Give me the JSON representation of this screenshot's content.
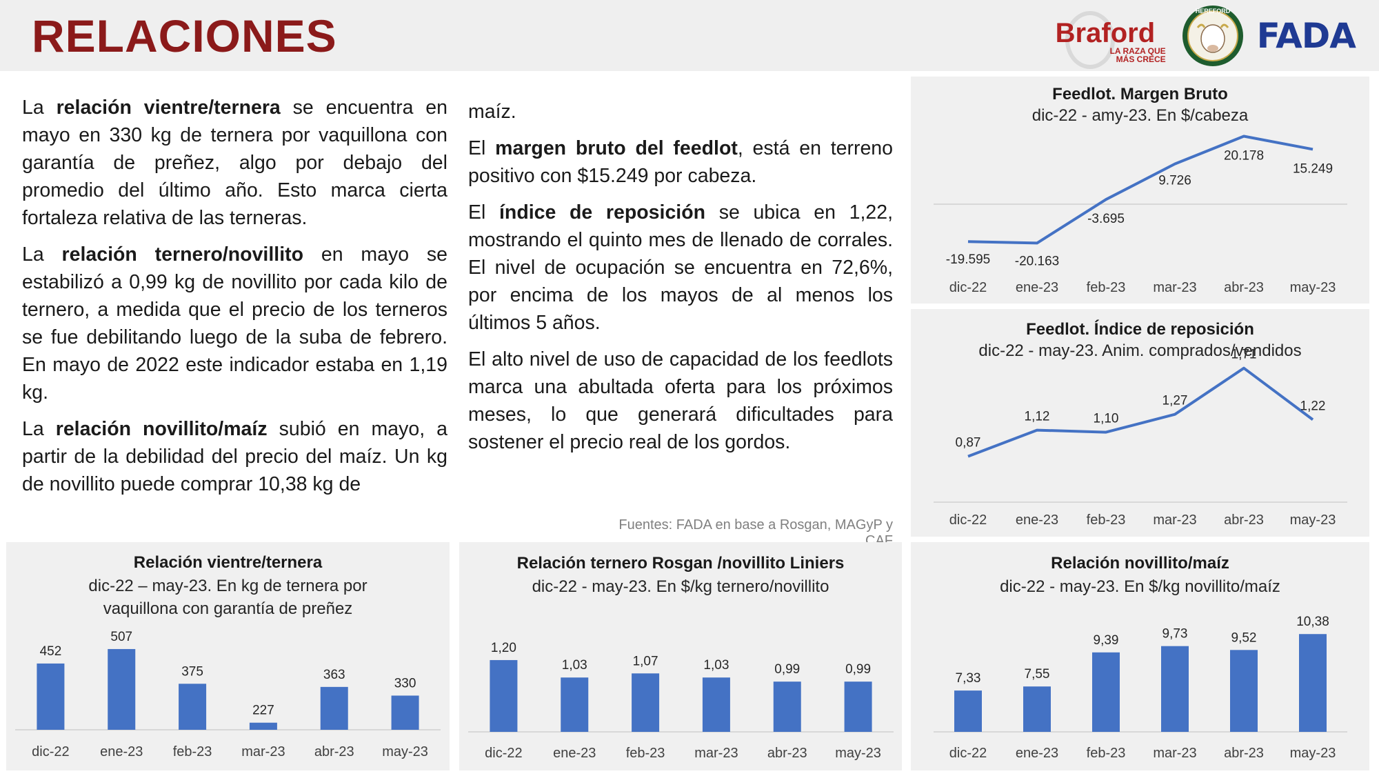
{
  "page": {
    "title": "RELACIONES"
  },
  "logos": {
    "braford_name": "Braford",
    "braford_tagline_1": "LA RAZA QUE",
    "braford_tagline_2": "MÁS CRECE",
    "hereford_ring": "HEREFORD",
    "fada": "FADA"
  },
  "text": {
    "col1": [
      [
        "La ",
        {
          "b": "relación vientre/ternera"
        },
        " se encuentra en mayo en 330 kg de ternera por vaquillona con garantía de preñez, algo por debajo del promedio del último año. Esto marca cierta fortaleza relativa de las terneras."
      ],
      [
        "La ",
        {
          "b": "relación ternero/novillito"
        },
        " en mayo se estabilizó a 0,99 kg de novillito por cada kilo de ternero, a medida que el precio de los terneros se fue debilitando luego de la suba de febrero. En mayo de 2022 este indicador estaba en 1,19 kg."
      ],
      [
        "La ",
        {
          "b": "relación novillito/maíz"
        },
        " subió en mayo, a partir de la debilidad del precio del maíz. Un kg de novillito puede comprar 10,38 kg de"
      ]
    ],
    "col2": [
      [
        "maíz."
      ],
      [
        "El ",
        {
          "b": "margen bruto del feedlot"
        },
        ", está en terreno positivo con $15.249 por cabeza."
      ],
      [
        "El ",
        {
          "b": "índice de reposición"
        },
        " se ubica en 1,22, mostrando el quinto mes de llenado de corrales. El nivel de ocupación se encuentra en 72,6%, por encima de los mayos de al menos los últimos 5 años."
      ],
      [
        "El alto nivel de uso de capacidad de los feedlots marca una abultada oferta para los próximos meses, lo que generará dificultades para sostener el precio real de los gordos."
      ]
    ],
    "source": "Fuentes: FADA en base a Rosgan, MAGyP y CAF"
  },
  "colors": {
    "title": "#8b1a1a",
    "bar": "#4472c4",
    "line": "#4472c4",
    "panel_bg": "#f0f0f0"
  },
  "chart_data": [
    {
      "id": "margen",
      "type": "line",
      "title": "Feedlot. Margen Bruto",
      "subtitle": "dic-22 - amy-23. En $/cabeza",
      "categories": [
        "dic-22",
        "ene-23",
        "feb-23",
        "mar-23",
        "abr-23",
        "may-23"
      ],
      "values": [
        -19595,
        -20163,
        -3695,
        9726,
        20178,
        15249
      ],
      "labels": [
        "-19.595",
        "-20.163",
        "-3.695",
        "9.726",
        "20.178",
        "15.249"
      ],
      "ylim": [
        -25000,
        25000
      ]
    },
    {
      "id": "indice",
      "type": "line",
      "title": "Feedlot. Índice de reposición",
      "subtitle": "dic-22 - may-23. Anim. comprados/vendidos",
      "categories": [
        "dic-22",
        "ene-23",
        "feb-23",
        "mar-23",
        "abr-23",
        "may-23"
      ],
      "values": [
        0.87,
        1.12,
        1.1,
        1.27,
        1.71,
        1.22
      ],
      "labels": [
        "0,87",
        "1,12",
        "1,10",
        "1,27",
        "1,71",
        "1,22"
      ],
      "ylim": [
        0.5,
        1.8
      ]
    },
    {
      "id": "vientre",
      "type": "bar",
      "title": "Relación vientre/ternera",
      "subtitle": "dic-22 – may-23. En kg de ternera por vaquillona con garantía de preñez",
      "categories": [
        "dic-22",
        "ene-23",
        "feb-23",
        "mar-23",
        "abr-23",
        "may-23"
      ],
      "values": [
        452,
        507,
        375,
        227,
        363,
        330
      ],
      "labels": [
        "452",
        "507",
        "375",
        "227",
        "363",
        "330"
      ],
      "ylim": [
        200,
        520
      ]
    },
    {
      "id": "ternero",
      "type": "bar",
      "title": "Relación ternero Rosgan /novillito Liniers",
      "subtitle": "dic-22 - may-23. En $/kg ternero/novillito",
      "categories": [
        "dic-22",
        "ene-23",
        "feb-23",
        "mar-23",
        "abr-23",
        "may-23"
      ],
      "values": [
        1.2,
        1.03,
        1.07,
        1.03,
        0.99,
        0.99
      ],
      "labels": [
        "1,20",
        "1,03",
        "1,07",
        "1,03",
        "0,99",
        "0,99"
      ],
      "ylim": [
        0.5,
        1.24
      ]
    },
    {
      "id": "novillito",
      "type": "bar",
      "title": "Relación novillito/maíz",
      "subtitle": "dic-22 - may-23. En $/kg novillito/maíz",
      "categories": [
        "dic-22",
        "ene-23",
        "feb-23",
        "mar-23",
        "abr-23",
        "may-23"
      ],
      "values": [
        7.33,
        7.55,
        9.39,
        9.73,
        9.52,
        10.38
      ],
      "labels": [
        "7,33",
        "7,55",
        "9,39",
        "9,73",
        "9,52",
        "10,38"
      ],
      "ylim": [
        5.1,
        10.5
      ]
    }
  ]
}
